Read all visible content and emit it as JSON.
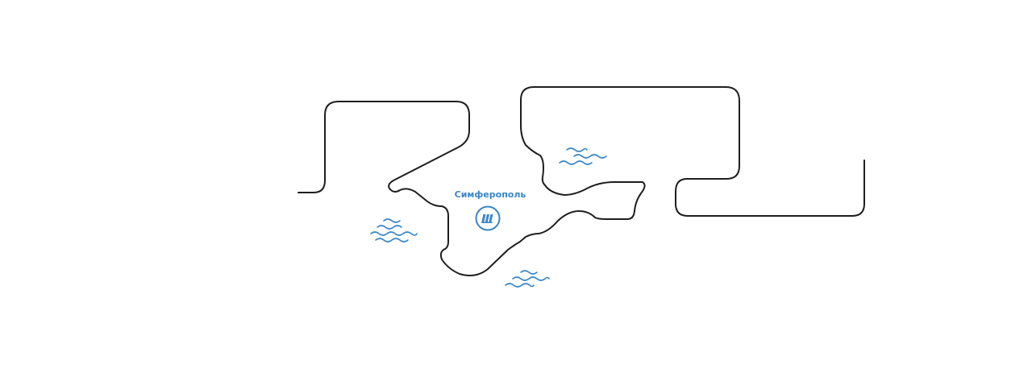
{
  "map": {
    "city": {
      "name": "Симферополь",
      "icon": "transport-logo-icon"
    },
    "colors": {
      "accent": "#3a87c6",
      "outline": "#1e1e1e",
      "background": "#ffffff"
    }
  }
}
